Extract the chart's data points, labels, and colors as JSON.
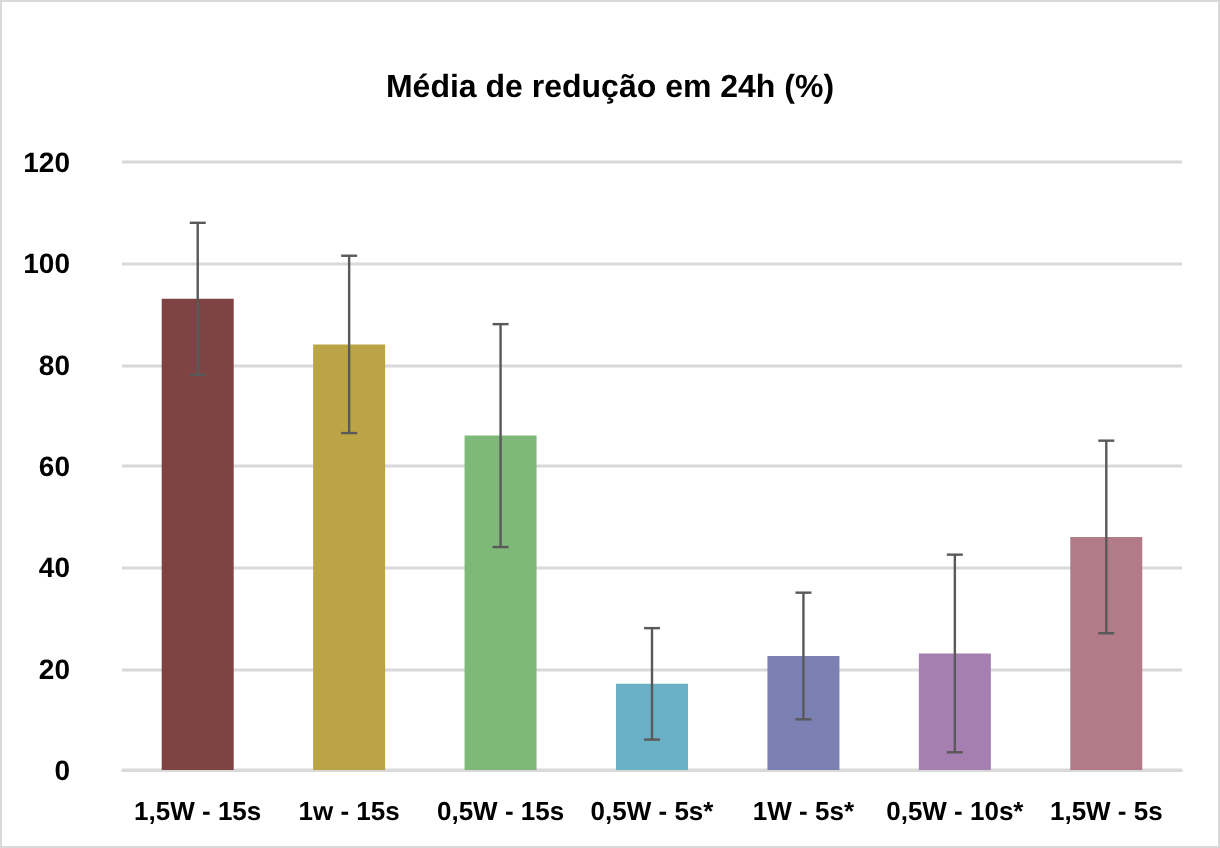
{
  "chart_data": {
    "type": "bar",
    "title": "Média de redução em 24h (%)",
    "categories": [
      "1,5W - 15s",
      "1w - 15s",
      "0,5W - 15s",
      "0,5W - 5s*",
      "1W - 5s*",
      "0,5W - 10s*",
      "1,5W - 5s"
    ],
    "values": [
      93,
      84,
      66,
      17,
      22.5,
      23,
      46
    ],
    "errors": [
      15,
      17.5,
      22,
      11,
      12.5,
      19.5,
      19
    ],
    "colors": [
      "#7f4343",
      "#bba446",
      "#7fb97a",
      "#6bb1c6",
      "#7b80b3",
      "#a47fb0",
      "#b27b88"
    ],
    "ylim": [
      0,
      120
    ],
    "yticks": [
      0,
      20,
      40,
      60,
      80,
      100,
      120
    ],
    "grid": "y"
  }
}
